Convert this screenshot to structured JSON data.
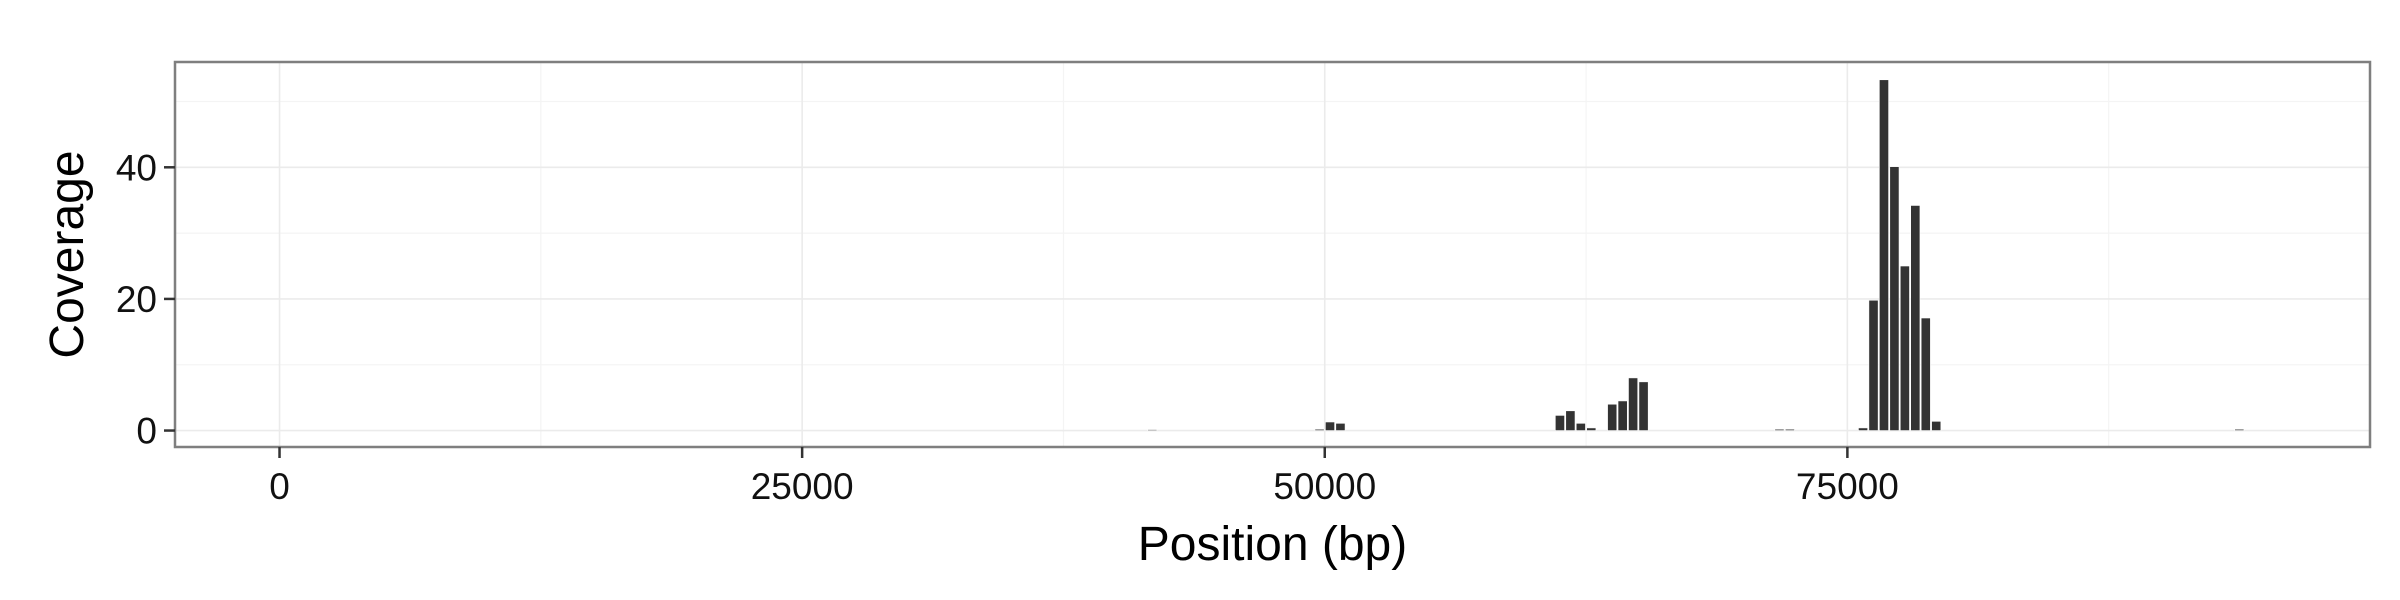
{
  "chart_data": {
    "type": "bar",
    "title": "",
    "xlabel": "Position (bp)",
    "ylabel": "Coverage",
    "xlim": [
      -5000,
      100000
    ],
    "ylim": [
      -2.5,
      56
    ],
    "x_ticks": [
      0,
      25000,
      50000,
      75000
    ],
    "x_tick_labels": [
      "0",
      "25000",
      "50000",
      "75000"
    ],
    "y_ticks": [
      0,
      20,
      40
    ],
    "y_tick_labels": [
      "0",
      "20",
      "40"
    ],
    "bin_width": 500,
    "grid": true,
    "legend": "none",
    "bar_color": "#333333",
    "panel_border_color": "#7f7f7f",
    "grid_color": "#ebebeb",
    "x": [
      41750,
      49750,
      50250,
      50750,
      61250,
      61750,
      62250,
      62750,
      63750,
      64250,
      64750,
      65250,
      71750,
      72250,
      75750,
      76250,
      76750,
      77250,
      77750,
      78250,
      78750,
      79250,
      93750
    ],
    "values": [
      0.15,
      0.2,
      1.3,
      1.1,
      2.3,
      3.0,
      1.1,
      0.4,
      4.0,
      4.5,
      8.0,
      7.4,
      0.2,
      0.2,
      0.4,
      19.8,
      53.3,
      40.1,
      25.0,
      34.2,
      17.1,
      1.4,
      0.2
    ]
  }
}
